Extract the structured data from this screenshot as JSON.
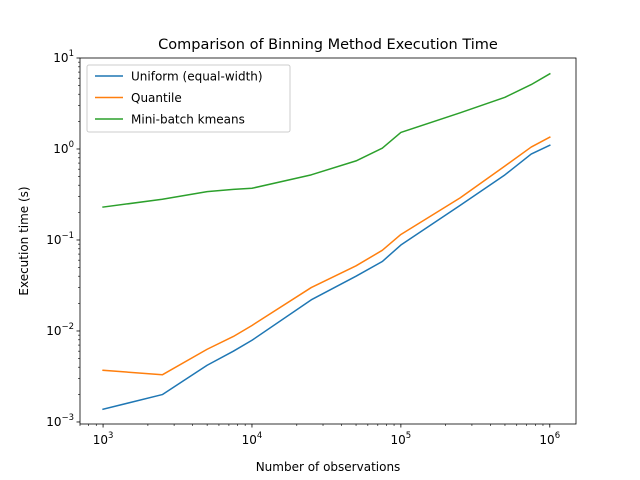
{
  "chart_data": {
    "type": "line",
    "title": "Comparison of Binning Method Execution Time",
    "xlabel": "Number of observations",
    "ylabel": "Execution time (s)",
    "xscale": "log",
    "yscale": "log",
    "xlim": [
      700,
      1500000
    ],
    "ylim": [
      0.00095,
      10
    ],
    "x_ticks": [
      {
        "value": 1000,
        "base": "10",
        "exp": "3"
      },
      {
        "value": 10000,
        "base": "10",
        "exp": "4"
      },
      {
        "value": 100000,
        "base": "10",
        "exp": "5"
      },
      {
        "value": 1000000,
        "base": "10",
        "exp": "6"
      }
    ],
    "y_ticks": [
      {
        "value": 0.001,
        "base": "10",
        "exp": "−3"
      },
      {
        "value": 0.01,
        "base": "10",
        "exp": "−2"
      },
      {
        "value": 0.1,
        "base": "10",
        "exp": "−1"
      },
      {
        "value": 1,
        "base": "10",
        "exp": "0"
      },
      {
        "value": 10,
        "base": "10",
        "exp": "1"
      }
    ],
    "grid": false,
    "legend_position": "upper-left",
    "x": [
      1000,
      2500,
      5000,
      7500,
      10000,
      25000,
      50000,
      75000,
      100000,
      250000,
      500000,
      750000,
      1000000
    ],
    "series": [
      {
        "name": "Uniform (equal-width)",
        "color": "#1f77b4",
        "values": [
          0.00138,
          0.002,
          0.0042,
          0.006,
          0.0079,
          0.022,
          0.04,
          0.058,
          0.088,
          0.24,
          0.52,
          0.88,
          1.1
        ]
      },
      {
        "name": "Quantile",
        "color": "#ff7f0e",
        "values": [
          0.0037,
          0.0033,
          0.0063,
          0.0087,
          0.0115,
          0.03,
          0.052,
          0.077,
          0.115,
          0.29,
          0.65,
          1.05,
          1.35
        ]
      },
      {
        "name": "Mini-batch kmeans",
        "color": "#2ca02c",
        "values": [
          0.23,
          0.28,
          0.34,
          0.36,
          0.37,
          0.52,
          0.74,
          1.02,
          1.52,
          2.5,
          3.7,
          5.1,
          6.7
        ]
      }
    ]
  }
}
